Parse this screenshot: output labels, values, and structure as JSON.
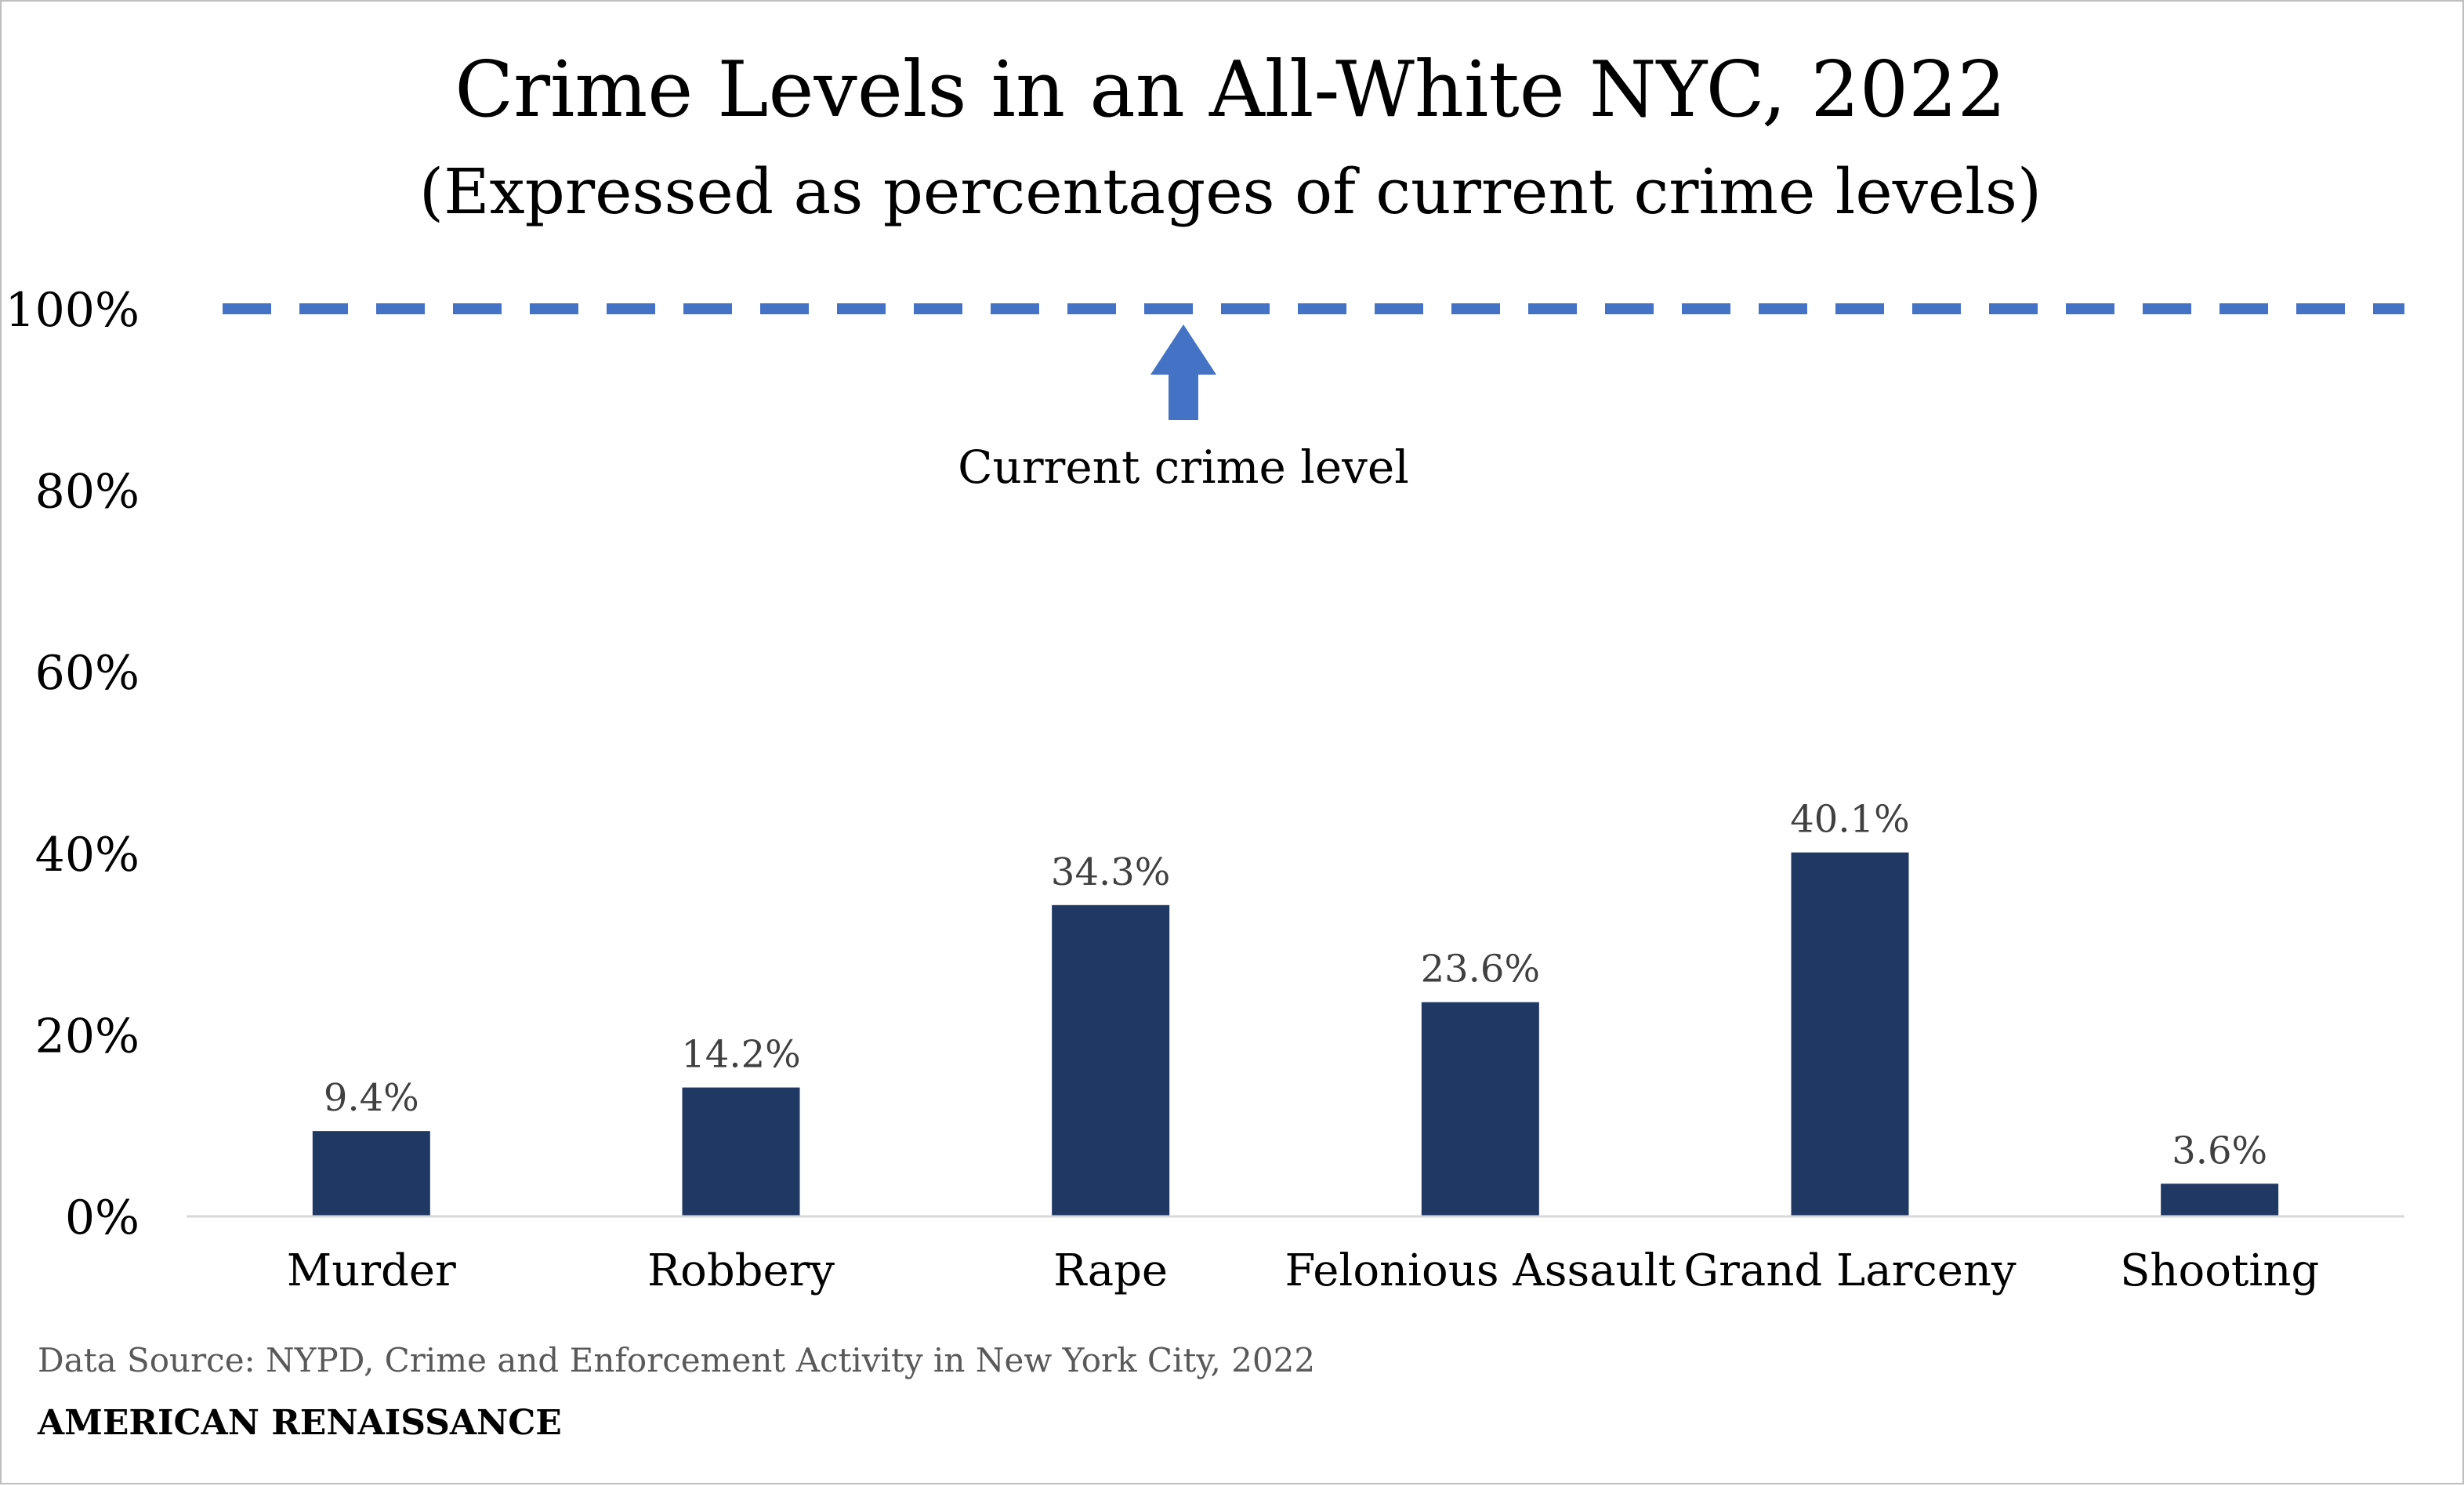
{
  "chart_data": {
    "type": "bar",
    "title": "Crime Levels in an All-White NYC, 2022",
    "subtitle": "(Expressed as percentages of current crime levels)",
    "categories": [
      "Murder",
      "Robbery",
      "Rape",
      "Felonious Assault",
      "Grand Larceny",
      "Shooting"
    ],
    "values": [
      9.4,
      14.2,
      34.3,
      23.6,
      40.1,
      3.6
    ],
    "data_labels": [
      "9.4%",
      "14.2%",
      "34.3%",
      "23.6%",
      "40.1%",
      "3.6%"
    ],
    "ylim": [
      0,
      100
    ],
    "yticks": [
      0,
      20,
      40,
      60,
      80,
      100
    ],
    "ytick_labels": [
      "0%",
      "20%",
      "40%",
      "60%",
      "80%",
      "100%"
    ],
    "grid": false,
    "reference_line": {
      "value": 100,
      "style": "dashed",
      "annotation": "Current crime level"
    },
    "source": "Data Source: NYPD, Crime and Enforcement Activity in New York City, 2022",
    "brand": "AMERICAN RENAISSANCE",
    "colors": {
      "bar": "#1f3864",
      "reference_line": "#4472c4",
      "axis": "#d9d9d9",
      "data_label": "#404040"
    }
  }
}
